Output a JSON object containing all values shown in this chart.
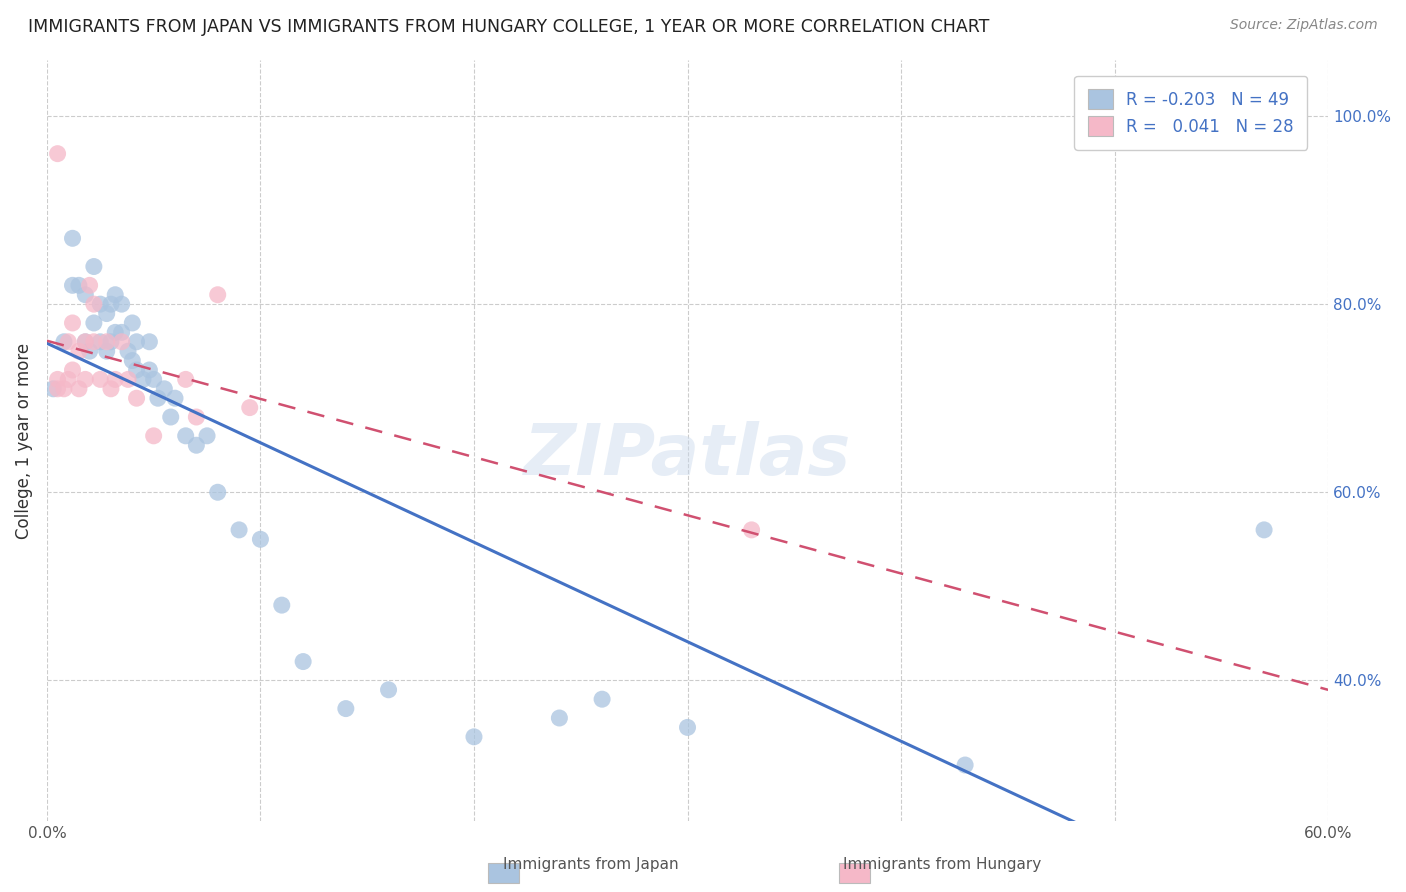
{
  "title": "IMMIGRANTS FROM JAPAN VS IMMIGRANTS FROM HUNGARY COLLEGE, 1 YEAR OR MORE CORRELATION CHART",
  "source": "Source: ZipAtlas.com",
  "ylabel": "College, 1 year or more",
  "xlim": [
    0.0,
    0.6
  ],
  "ylim": [
    0.25,
    1.06
  ],
  "x_tick_positions": [
    0.0,
    0.1,
    0.2,
    0.3,
    0.4,
    0.5,
    0.6
  ],
  "x_tick_labels": [
    "0.0%",
    "",
    "",
    "",
    "",
    "",
    "60.0%"
  ],
  "y_ticks_right": [
    0.4,
    0.6,
    0.8,
    1.0
  ],
  "y_tick_labels_right": [
    "40.0%",
    "60.0%",
    "80.0%",
    "100.0%"
  ],
  "legend_japan_R": "-0.203",
  "legend_japan_N": "49",
  "legend_hungary_R": "0.041",
  "legend_hungary_N": "28",
  "japan_color": "#aac4e0",
  "hungary_color": "#f5b8c8",
  "japan_line_color": "#4472c4",
  "hungary_line_color": "#d05070",
  "japan_x": [
    0.003,
    0.008,
    0.012,
    0.012,
    0.015,
    0.018,
    0.018,
    0.02,
    0.022,
    0.022,
    0.025,
    0.025,
    0.028,
    0.028,
    0.03,
    0.03,
    0.032,
    0.032,
    0.035,
    0.035,
    0.038,
    0.04,
    0.04,
    0.042,
    0.042,
    0.045,
    0.048,
    0.048,
    0.05,
    0.052,
    0.055,
    0.058,
    0.06,
    0.065,
    0.07,
    0.075,
    0.08,
    0.09,
    0.1,
    0.11,
    0.12,
    0.14,
    0.16,
    0.2,
    0.24,
    0.26,
    0.3,
    0.43,
    0.57
  ],
  "japan_y": [
    0.71,
    0.76,
    0.82,
    0.87,
    0.82,
    0.76,
    0.81,
    0.75,
    0.78,
    0.84,
    0.76,
    0.8,
    0.75,
    0.79,
    0.76,
    0.8,
    0.77,
    0.81,
    0.77,
    0.8,
    0.75,
    0.74,
    0.78,
    0.73,
    0.76,
    0.72,
    0.73,
    0.76,
    0.72,
    0.7,
    0.71,
    0.68,
    0.7,
    0.66,
    0.65,
    0.66,
    0.6,
    0.56,
    0.55,
    0.48,
    0.42,
    0.37,
    0.39,
    0.34,
    0.36,
    0.38,
    0.35,
    0.31,
    0.56
  ],
  "hungary_x": [
    0.005,
    0.005,
    0.005,
    0.008,
    0.01,
    0.01,
    0.012,
    0.012,
    0.015,
    0.015,
    0.018,
    0.018,
    0.02,
    0.022,
    0.022,
    0.025,
    0.028,
    0.03,
    0.032,
    0.035,
    0.038,
    0.042,
    0.05,
    0.065,
    0.07,
    0.08,
    0.095,
    0.33
  ],
  "hungary_y": [
    0.71,
    0.72,
    0.96,
    0.71,
    0.72,
    0.76,
    0.73,
    0.78,
    0.71,
    0.75,
    0.72,
    0.76,
    0.82,
    0.76,
    0.8,
    0.72,
    0.76,
    0.71,
    0.72,
    0.76,
    0.72,
    0.7,
    0.66,
    0.72,
    0.68,
    0.81,
    0.69,
    0.56
  ],
  "watermark": "ZIPatlas",
  "background_color": "#ffffff",
  "grid_color": "#cccccc"
}
